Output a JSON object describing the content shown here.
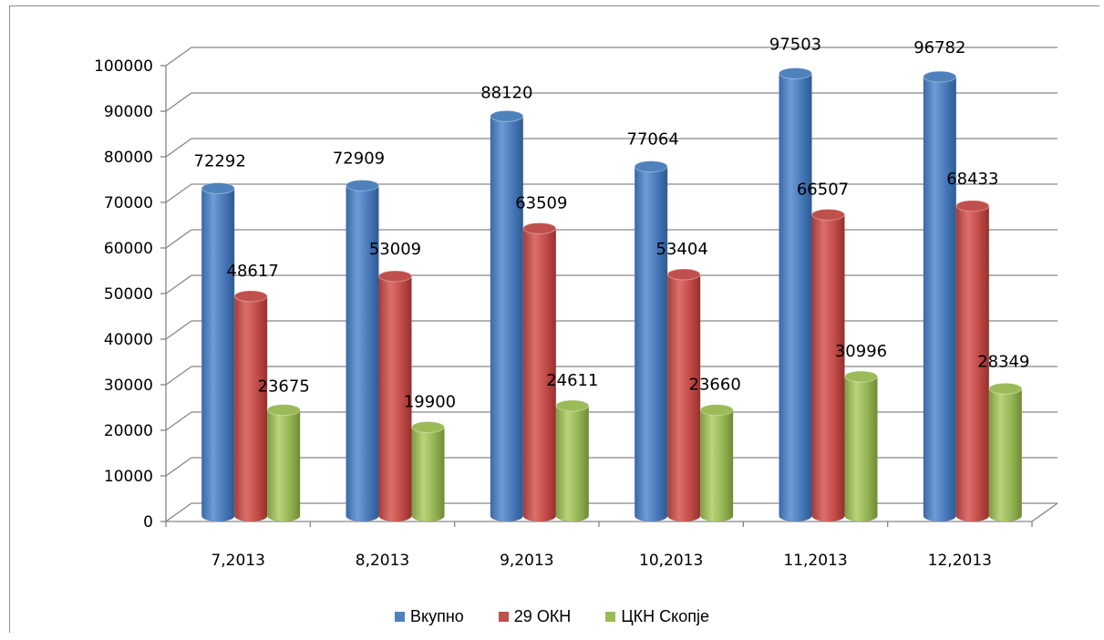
{
  "chart_data": {
    "type": "bar",
    "categories": [
      "7,2013",
      "8,2013",
      "9,2013",
      "10,2013",
      "11,2013",
      "12,2013"
    ],
    "series": [
      {
        "name": "Вкупно",
        "values": [
          72292,
          72909,
          88120,
          77064,
          97503,
          96782
        ],
        "color": "#4f81bd"
      },
      {
        "name": "29 ОКН",
        "values": [
          48617,
          53009,
          63509,
          53404,
          66507,
          68433
        ],
        "color": "#c0504d"
      },
      {
        "name": "ЦКН Скопје",
        "values": [
          23675,
          19900,
          24611,
          23660,
          30996,
          28349
        ],
        "color": "#9bbb59"
      }
    ],
    "ylim": [
      0,
      100000
    ],
    "yticks": [
      "0",
      "10000",
      "20000",
      "30000",
      "40000",
      "50000",
      "60000",
      "70000",
      "80000",
      "90000",
      "100000"
    ],
    "grid": true,
    "legend": "bottom"
  }
}
